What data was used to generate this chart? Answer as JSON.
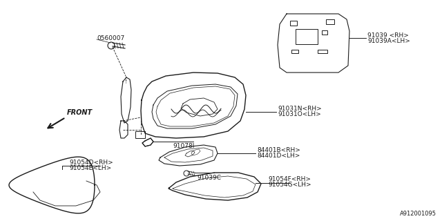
{
  "background_color": "#ffffff",
  "line_color": "#1a1a1a",
  "label_color": "#1a1a1a",
  "figure_width": 6.4,
  "figure_height": 3.2,
  "dpi": 100,
  "watermark": "A912001095",
  "labels": {
    "part_number_top": "0560007",
    "part_rh_top": "91039 <RH>",
    "part_lh_top": "91039A<LH>",
    "part_rh_mid1": "91031N<RH>",
    "part_lh_mid1": "91031O<LH>",
    "part_mid2": "91078I",
    "part_rh_mid3": "84401B<RH>",
    "part_lh_mid3": "84401D<LH>",
    "part_bot_center": "91039C",
    "part_rh_left": "91054D<RH>",
    "part_lh_left": "91054E<LH>",
    "part_rh_bot": "91054F<RH>",
    "part_lh_bot": "91054G<LH>",
    "front_label": "FRONT"
  }
}
